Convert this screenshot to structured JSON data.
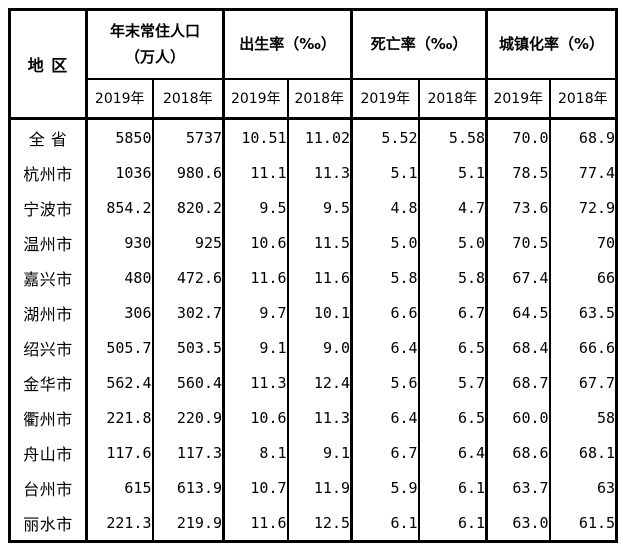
{
  "table": {
    "corner_header": "地 区",
    "groups": [
      {
        "label_line1": "年末常住人口",
        "label_line2": "（万人）",
        "sub": [
          "2019年",
          "2018年"
        ]
      },
      {
        "label": "出生率（‰）",
        "sub": [
          "2019年",
          "2018年"
        ]
      },
      {
        "label": "死亡率（‰）",
        "sub": [
          "2019年",
          "2018年"
        ]
      },
      {
        "label": "城镇化率（%）",
        "sub": [
          "2019年",
          "2018年"
        ]
      }
    ],
    "rows": [
      {
        "region": "全 省",
        "values": [
          "5850",
          "5737",
          "10.51",
          "11.02",
          "5.52",
          "5.58",
          "70.0",
          "68.9"
        ]
      },
      {
        "region": "杭州市",
        "values": [
          "1036",
          "980.6",
          "11.1",
          "11.3",
          "5.1",
          "5.1",
          "78.5",
          "77.4"
        ]
      },
      {
        "region": "宁波市",
        "values": [
          "854.2",
          "820.2",
          "9.5",
          "9.5",
          "4.8",
          "4.7",
          "73.6",
          "72.9"
        ]
      },
      {
        "region": "温州市",
        "values": [
          "930",
          "925",
          "10.6",
          "11.5",
          "5.0",
          "5.0",
          "70.5",
          "70"
        ]
      },
      {
        "region": "嘉兴市",
        "values": [
          "480",
          "472.6",
          "11.6",
          "11.6",
          "5.8",
          "5.8",
          "67.4",
          "66"
        ]
      },
      {
        "region": "湖州市",
        "values": [
          "306",
          "302.7",
          "9.7",
          "10.1",
          "6.6",
          "6.7",
          "64.5",
          "63.5"
        ]
      },
      {
        "region": "绍兴市",
        "values": [
          "505.7",
          "503.5",
          "9.1",
          "9.0",
          "6.4",
          "6.5",
          "68.4",
          "66.6"
        ]
      },
      {
        "region": "金华市",
        "values": [
          "562.4",
          "560.4",
          "11.3",
          "12.4",
          "5.6",
          "5.7",
          "68.7",
          "67.7"
        ]
      },
      {
        "region": "衢州市",
        "values": [
          "221.8",
          "220.9",
          "10.6",
          "11.3",
          "6.4",
          "6.5",
          "60.0",
          "58"
        ]
      },
      {
        "region": "舟山市",
        "values": [
          "117.6",
          "117.3",
          "8.1",
          "9.1",
          "6.7",
          "6.4",
          "68.6",
          "68.1"
        ]
      },
      {
        "region": "台州市",
        "values": [
          "615",
          "613.9",
          "10.7",
          "11.9",
          "5.9",
          "6.1",
          "63.7",
          "63"
        ]
      },
      {
        "region": "丽水市",
        "values": [
          "221.3",
          "219.9",
          "11.6",
          "12.5",
          "6.1",
          "6.1",
          "63.0",
          "61.5"
        ]
      }
    ]
  },
  "colors": {
    "border": "#000000",
    "text": "#000000",
    "background": "#ffffff"
  }
}
